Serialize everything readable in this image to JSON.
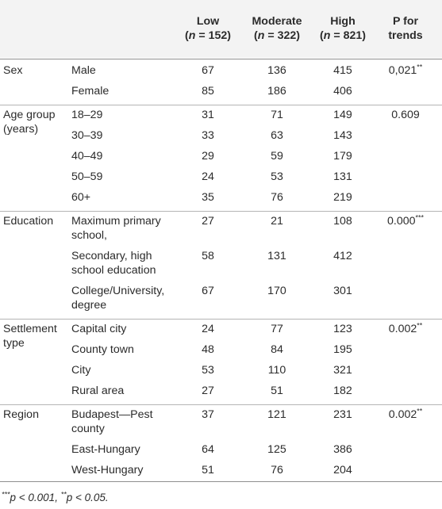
{
  "headers": [
    {
      "key": "low",
      "line1": "Low",
      "line2_pre": "(",
      "italic": "n",
      "line2_post": " = 152)"
    },
    {
      "key": "moderate",
      "line1": "Moderate",
      "line2_pre": "(",
      "italic": "n",
      "line2_post": " = 322)"
    },
    {
      "key": "high",
      "line1": "High",
      "line2_pre": "(",
      "italic": "n",
      "line2_post": " = 821)"
    },
    {
      "key": "p",
      "line1": "P for",
      "line2_pre": "trends",
      "italic": "",
      "line2_post": ""
    }
  ],
  "groups": [
    {
      "label": [
        "Sex"
      ],
      "p": {
        "value": "0,021",
        "stars": "**"
      },
      "rows": [
        {
          "label": [
            "Male"
          ],
          "values": [
            "67",
            "136",
            "415"
          ]
        },
        {
          "label": [
            "Female"
          ],
          "values": [
            "85",
            "186",
            "406"
          ]
        }
      ]
    },
    {
      "label": [
        "Age group",
        "(years)"
      ],
      "p": {
        "value": "0.609",
        "stars": ""
      },
      "rows": [
        {
          "label": [
            "18–29"
          ],
          "values": [
            "31",
            "71",
            "149"
          ]
        },
        {
          "label": [
            "30–39"
          ],
          "values": [
            "33",
            "63",
            "143"
          ]
        },
        {
          "label": [
            "40–49"
          ],
          "values": [
            "29",
            "59",
            "179"
          ]
        },
        {
          "label": [
            "50–59"
          ],
          "values": [
            "24",
            "53",
            "131"
          ]
        },
        {
          "label": [
            "60+"
          ],
          "values": [
            "35",
            "76",
            "219"
          ]
        }
      ]
    },
    {
      "label": [
        "Education"
      ],
      "p": {
        "value": "0.000",
        "stars": "***"
      },
      "rows": [
        {
          "label": [
            "Maximum primary",
            "school,"
          ],
          "values": [
            "27",
            "21",
            "108"
          ]
        },
        {
          "label": [
            "Secondary, high",
            "school education"
          ],
          "values": [
            "58",
            "131",
            "412"
          ]
        },
        {
          "label": [
            "College/University,",
            "degree"
          ],
          "values": [
            "67",
            "170",
            "301"
          ]
        }
      ]
    },
    {
      "label": [
        "Settlement",
        "type"
      ],
      "p": {
        "value": "0.002",
        "stars": "**"
      },
      "rows": [
        {
          "label": [
            "Capital city"
          ],
          "values": [
            "24",
            "77",
            "123"
          ]
        },
        {
          "label": [
            "County town"
          ],
          "values": [
            "48",
            "84",
            "195"
          ]
        },
        {
          "label": [
            "City"
          ],
          "values": [
            "53",
            "110",
            "321"
          ]
        },
        {
          "label": [
            "Rural area"
          ],
          "values": [
            "27",
            "51",
            "182"
          ]
        }
      ]
    },
    {
      "label": [
        "Region"
      ],
      "p": {
        "value": "0.002",
        "stars": "**"
      },
      "rows": [
        {
          "label": [
            "Budapest—Pest",
            "county"
          ],
          "values": [
            "37",
            "121",
            "231"
          ]
        },
        {
          "label": [
            "East-Hungary"
          ],
          "values": [
            "64",
            "125",
            "386"
          ]
        },
        {
          "label": [
            "West-Hungary"
          ],
          "values": [
            "51",
            "76",
            "204"
          ]
        }
      ]
    }
  ],
  "footnote": {
    "m1": "***",
    "t1": "p < 0.001, ",
    "m2": "**",
    "t2": "p < 0.05."
  }
}
